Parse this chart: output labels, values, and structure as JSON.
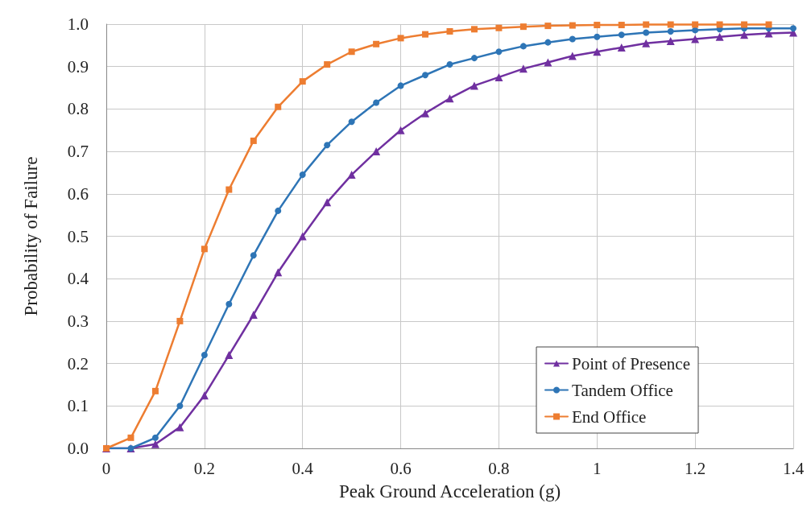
{
  "chart_data": {
    "type": "line",
    "xlabel": "Peak Ground Acceleration (g)",
    "ylabel": "Probability of Failure",
    "xlim": [
      0,
      1.4
    ],
    "xticks": [
      0,
      0.2,
      0.4,
      0.6,
      0.8,
      1,
      1.2,
      1.4
    ],
    "ylim": [
      0,
      1
    ],
    "yticks": [
      {
        "value": 0,
        "label": "0.0"
      },
      {
        "value": 0.1,
        "label": "0.1"
      },
      {
        "value": 0.2,
        "label": "0.2"
      },
      {
        "value": 0.3,
        "label": "0.3"
      },
      {
        "value": 0.4,
        "label": "0.4"
      },
      {
        "value": 0.5,
        "label": "0.5"
      },
      {
        "value": 0.6,
        "label": "0.6"
      },
      {
        "value": 0.7,
        "label": "0.7"
      },
      {
        "value": 0.8,
        "label": "0.8"
      },
      {
        "value": 0.9,
        "label": "0.9"
      },
      {
        "value": 1,
        "label": "1.0"
      }
    ],
    "grid": true,
    "legend": "bottom right",
    "line_style": "solid",
    "x": [
      0,
      0.05,
      0.1,
      0.15,
      0.2,
      0.25,
      0.3,
      0.35,
      0.4,
      0.45,
      0.5,
      0.55,
      0.6,
      0.65,
      0.7,
      0.75,
      0.8,
      0.85,
      0.9,
      0.95,
      1,
      1.05,
      1.1,
      1.15,
      1.2,
      1.25,
      1.3,
      1.35,
      1.4
    ],
    "series": [
      {
        "name": "Point of Presence",
        "color": "#7030a0",
        "marker": "triangle",
        "values": [
          0,
          0,
          0.01,
          0.05,
          0.125,
          0.22,
          0.315,
          0.415,
          0.5,
          0.58,
          0.645,
          0.7,
          0.75,
          0.79,
          0.825,
          0.855,
          0.875,
          0.895,
          0.91,
          0.925,
          0.935,
          0.945,
          0.955,
          0.96,
          0.965,
          0.97,
          0.975,
          0.978,
          0.98
        ]
      },
      {
        "name": "Tandem Office",
        "color": "#2e75b6",
        "marker": "circle",
        "values": [
          0,
          0,
          0.025,
          0.1,
          0.22,
          0.34,
          0.455,
          0.56,
          0.645,
          0.715,
          0.77,
          0.815,
          0.855,
          0.88,
          0.905,
          0.92,
          0.935,
          0.948,
          0.957,
          0.965,
          0.97,
          0.975,
          0.98,
          0.983,
          0.986,
          0.988,
          0.99,
          0.99,
          0.99
        ]
      },
      {
        "name": "End Office",
        "color": "#ed7d31",
        "marker": "square",
        "x": [
          0,
          0.05,
          0.1,
          0.15,
          0.2,
          0.25,
          0.3,
          0.35,
          0.4,
          0.45,
          0.5,
          0.55,
          0.6,
          0.65,
          0.7,
          0.75,
          0.8,
          0.85,
          0.9,
          0.95,
          1,
          1.05,
          1.1,
          1.15,
          1.2,
          1.25,
          1.3,
          1.35
        ],
        "values": [
          0,
          0.025,
          0.135,
          0.3,
          0.47,
          0.61,
          0.725,
          0.805,
          0.865,
          0.905,
          0.935,
          0.953,
          0.967,
          0.976,
          0.983,
          0.988,
          0.991,
          0.994,
          0.996,
          0.997,
          0.998,
          0.998,
          0.999,
          0.999,
          0.999,
          0.999,
          0.999,
          0.999
        ]
      }
    ]
  }
}
